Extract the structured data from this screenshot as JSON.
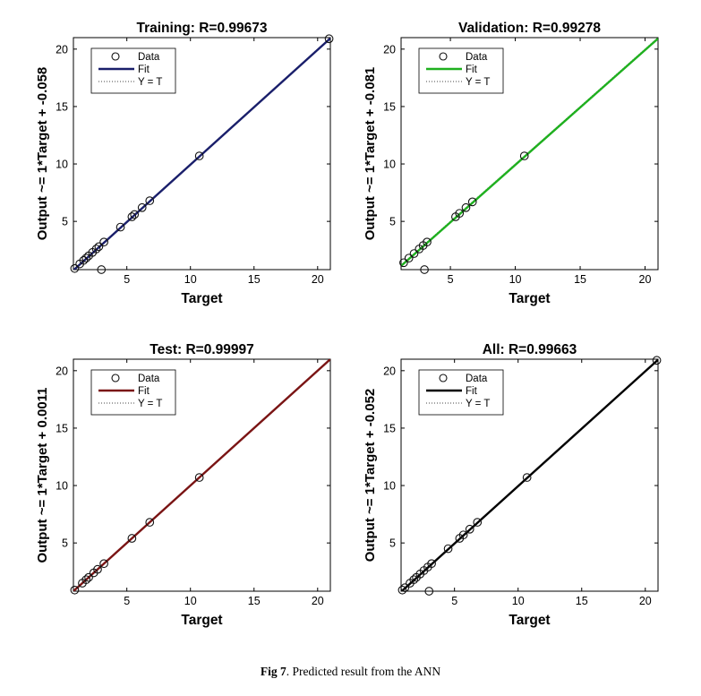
{
  "figure_caption": {
    "label": "Fig 7",
    "text": ". Predicted result from the ANN"
  },
  "chart_data": [
    {
      "type": "scatter",
      "title": "Training: R=0.99673",
      "xlabel": "Target",
      "ylabel": "Output ~= 1*Target + -0.058",
      "xlim": [
        0.8,
        21
      ],
      "ylim": [
        0.8,
        21
      ],
      "xticks": [
        5,
        10,
        15,
        20
      ],
      "yticks": [
        5,
        10,
        15,
        20
      ],
      "grid": false,
      "legend_position": "top-left",
      "fit_color": "#1a1f6b",
      "fit": {
        "slope": 1,
        "intercept": -0.058
      },
      "legend": [
        "Data",
        "Fit",
        "Y = T"
      ],
      "series": [
        {
          "name": "Data",
          "x": [
            0.9,
            1.3,
            1.6,
            1.8,
            2.0,
            2.3,
            2.6,
            2.8,
            3.2,
            4.5,
            5.4,
            5.6,
            6.2,
            6.8,
            10.7,
            20.9,
            3.0
          ],
          "y": [
            0.9,
            1.3,
            1.6,
            1.8,
            2.0,
            2.3,
            2.6,
            2.8,
            3.2,
            4.5,
            5.4,
            5.6,
            6.2,
            6.8,
            10.7,
            20.9,
            0.8
          ]
        }
      ]
    },
    {
      "type": "scatter",
      "title": "Validation: R=0.99278",
      "xlabel": "Target",
      "ylabel": "Output ~= 1*Target + -0.081",
      "xlim": [
        1.2,
        21
      ],
      "ylim": [
        0.8,
        21
      ],
      "xticks": [
        5,
        10,
        15,
        20
      ],
      "yticks": [
        5,
        10,
        15,
        20
      ],
      "grid": false,
      "legend_position": "top-left",
      "fit_color": "#1fb01f",
      "fit": {
        "slope": 1,
        "intercept": -0.081
      },
      "legend": [
        "Data",
        "Fit",
        "Y = T"
      ],
      "series": [
        {
          "name": "Data",
          "x": [
            1.4,
            1.8,
            2.2,
            2.6,
            2.9,
            3.2,
            5.4,
            5.7,
            6.2,
            6.7,
            10.7,
            3.0
          ],
          "y": [
            1.4,
            1.8,
            2.2,
            2.6,
            2.9,
            3.2,
            5.4,
            5.7,
            6.2,
            6.7,
            10.7,
            0.8
          ]
        }
      ]
    },
    {
      "type": "scatter",
      "title": "Test: R=0.99997",
      "xlabel": "Target",
      "ylabel": "Output ~= 1*Target + 0.0011",
      "xlim": [
        0.8,
        21
      ],
      "ylim": [
        0.8,
        21
      ],
      "xticks": [
        5,
        10,
        15,
        20
      ],
      "yticks": [
        5,
        10,
        15,
        20
      ],
      "grid": false,
      "legend_position": "top-left",
      "fit_color": "#7a1414",
      "fit": {
        "slope": 1,
        "intercept": 0.0011
      },
      "legend": [
        "Data",
        "Fit",
        "Y = T"
      ],
      "series": [
        {
          "name": "Data",
          "x": [
            0.9,
            1.5,
            1.8,
            2.0,
            2.4,
            2.7,
            3.2,
            5.4,
            6.8,
            10.7
          ],
          "y": [
            0.9,
            1.5,
            1.8,
            2.0,
            2.4,
            2.7,
            3.2,
            5.4,
            6.8,
            10.7
          ]
        }
      ]
    },
    {
      "type": "scatter",
      "title": "All: R=0.99663",
      "xlabel": "Target",
      "ylabel": "Output ~= 1*Target + -0.052",
      "xlim": [
        0.8,
        21
      ],
      "ylim": [
        0.8,
        21
      ],
      "xticks": [
        5,
        10,
        15,
        20
      ],
      "yticks": [
        5,
        10,
        15,
        20
      ],
      "grid": false,
      "legend_position": "top-left",
      "fit_color": "#000000",
      "fit": {
        "slope": 1,
        "intercept": -0.052
      },
      "legend": [
        "Data",
        "Fit",
        "Y = T"
      ],
      "series": [
        {
          "name": "Data",
          "x": [
            0.9,
            1.1,
            1.5,
            1.8,
            2.0,
            2.3,
            2.6,
            2.9,
            3.2,
            4.5,
            5.4,
            5.7,
            6.2,
            6.8,
            10.7,
            20.9,
            3.0
          ],
          "y": [
            0.9,
            1.1,
            1.5,
            1.8,
            2.0,
            2.3,
            2.6,
            2.9,
            3.2,
            4.5,
            5.4,
            5.7,
            6.2,
            6.8,
            10.7,
            20.9,
            0.8
          ]
        }
      ]
    }
  ]
}
